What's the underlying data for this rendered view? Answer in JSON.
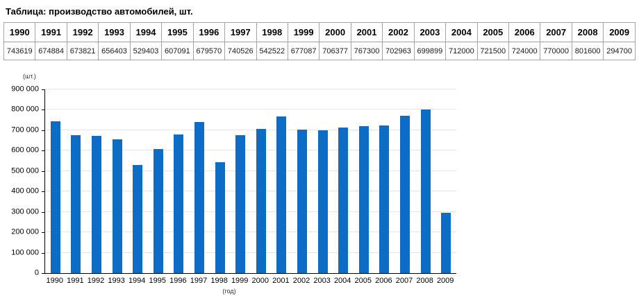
{
  "page": {
    "title": "Таблица: производство автомобилей, шт."
  },
  "table": {
    "years": [
      "1990",
      "1991",
      "1992",
      "1993",
      "1994",
      "1995",
      "1996",
      "1997",
      "1998",
      "1999",
      "2000",
      "2001",
      "2002",
      "2003",
      "2004",
      "2005",
      "2006",
      "2007",
      "2008",
      "2009"
    ],
    "values": [
      "743619",
      "674884",
      "673821",
      "656403",
      "529403",
      "607091",
      "679570",
      "740526",
      "542522",
      "677087",
      "706377",
      "767300",
      "702963",
      "699899",
      "712000",
      "721500",
      "724000",
      "770000",
      "801600",
      "294700"
    ]
  },
  "chart_data": {
    "type": "bar",
    "title": "",
    "categories": [
      "1990",
      "1991",
      "1992",
      "1993",
      "1994",
      "1995",
      "1996",
      "1997",
      "1998",
      "1999",
      "2000",
      "2001",
      "2002",
      "2003",
      "2004",
      "2005",
      "2006",
      "2007",
      "2008",
      "2009"
    ],
    "values": [
      743619,
      674884,
      673821,
      656403,
      529403,
      607091,
      679570,
      740526,
      542522,
      677087,
      706377,
      767300,
      702963,
      699899,
      712000,
      721500,
      724000,
      770000,
      801600,
      294700
    ],
    "xlabel": "(год)",
    "ylabel": "(шт.)",
    "ylim": [
      0,
      900000
    ],
    "ytick_step": 100000,
    "ytick_labels": [
      "0",
      "100 000",
      "200 000",
      "300 000",
      "400 000",
      "500 000",
      "600 000",
      "700 000",
      "800 000",
      "900 000"
    ],
    "bar_color": "#0d6cc6",
    "grid": true,
    "legend_position": "none"
  }
}
